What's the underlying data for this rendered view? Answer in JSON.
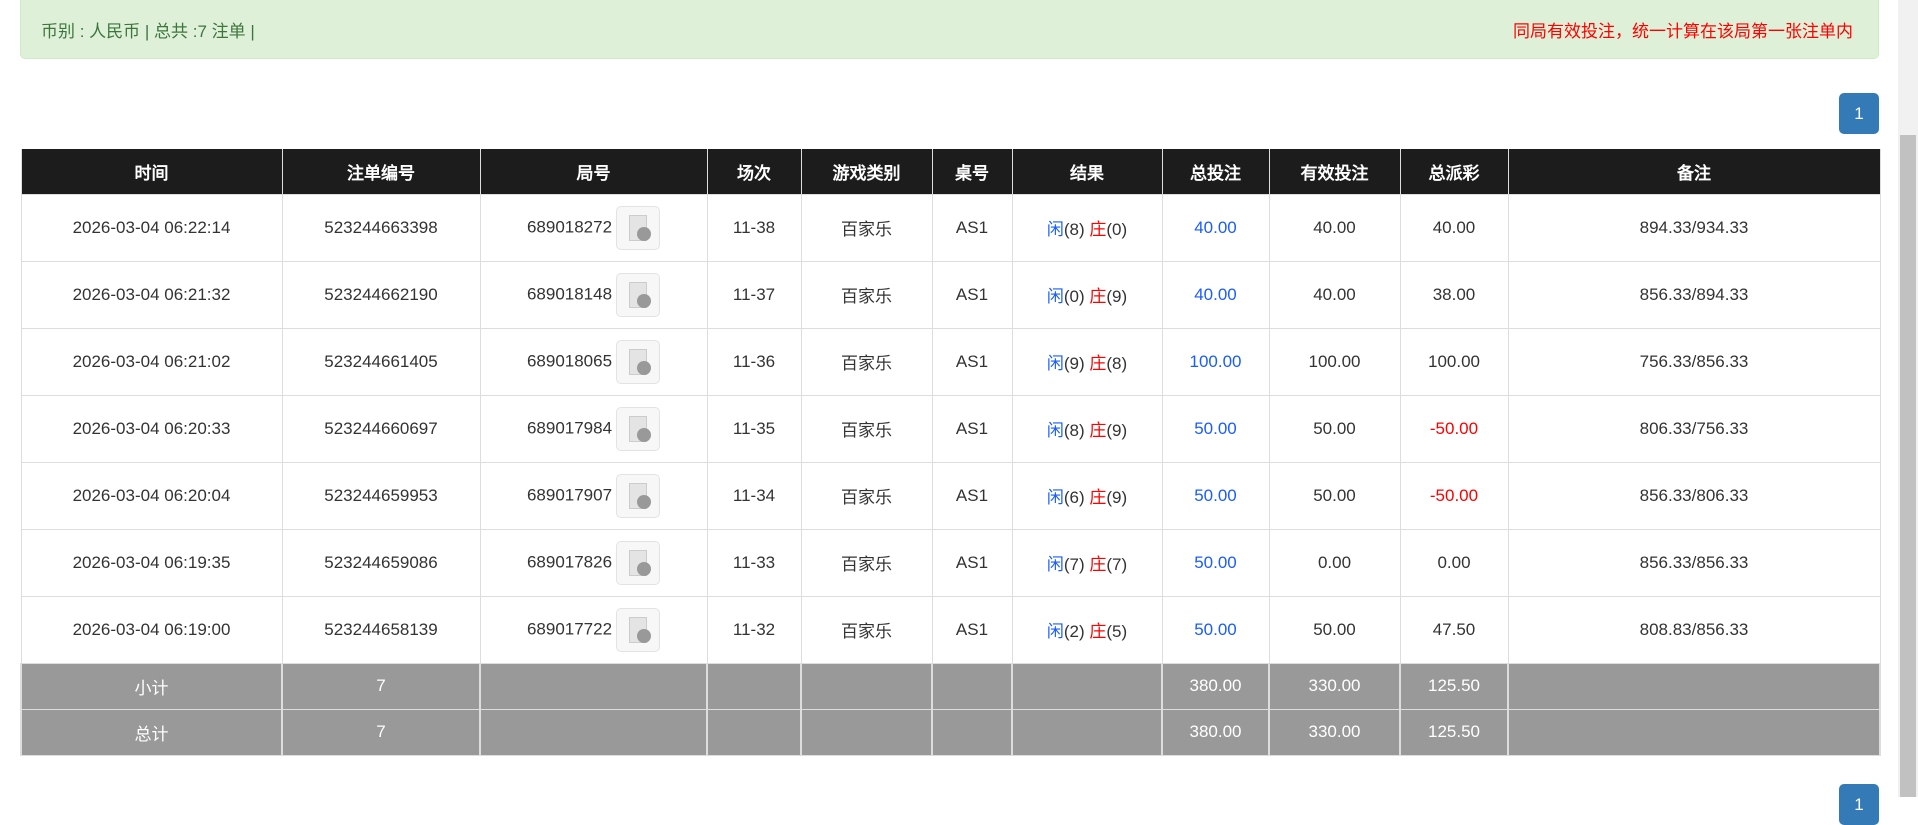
{
  "banner": {
    "left": "币别 : 人民币 | 总共 :7 注单 |",
    "right": "同局有效投注，统一计算在该局第一张注单内"
  },
  "pagination": {
    "current": "1"
  },
  "colors": {
    "accent": "#337ab7",
    "header_bg": "#1c1c1c",
    "player": "#1a5cff",
    "banker": "#ff0000",
    "banner_bg": "#dff0d8"
  },
  "table": {
    "headers": [
      "时间",
      "注单编号",
      "局号",
      "场次",
      "游戏类别",
      "桌号",
      "结果",
      "总投注",
      "有效投注",
      "总派彩",
      "备注"
    ],
    "rows": [
      {
        "time": "2026-03-04 06:22:14",
        "bet_id": "523244663398",
        "round": "689018272",
        "shoe": "11-38",
        "game": "百家乐",
        "table": "AS1",
        "player": "闲",
        "player_pts": "(8)",
        "banker": "庄",
        "banker_pts": "(0)",
        "total": "40.00",
        "valid": "40.00",
        "payout": "40.00",
        "payout_neg": false,
        "note": "894.33/934.33"
      },
      {
        "time": "2026-03-04 06:21:32",
        "bet_id": "523244662190",
        "round": "689018148",
        "shoe": "11-37",
        "game": "百家乐",
        "table": "AS1",
        "player": "闲",
        "player_pts": "(0)",
        "banker": "庄",
        "banker_pts": "(9)",
        "total": "40.00",
        "valid": "40.00",
        "payout": "38.00",
        "payout_neg": false,
        "note": "856.33/894.33"
      },
      {
        "time": "2026-03-04 06:21:02",
        "bet_id": "523244661405",
        "round": "689018065",
        "shoe": "11-36",
        "game": "百家乐",
        "table": "AS1",
        "player": "闲",
        "player_pts": "(9)",
        "banker": "庄",
        "banker_pts": "(8)",
        "total": "100.00",
        "valid": "100.00",
        "payout": "100.00",
        "payout_neg": false,
        "note": "756.33/856.33"
      },
      {
        "time": "2026-03-04 06:20:33",
        "bet_id": "523244660697",
        "round": "689017984",
        "shoe": "11-35",
        "game": "百家乐",
        "table": "AS1",
        "player": "闲",
        "player_pts": "(8)",
        "banker": "庄",
        "banker_pts": "(9)",
        "total": "50.00",
        "valid": "50.00",
        "payout": "-50.00",
        "payout_neg": true,
        "note": "806.33/756.33"
      },
      {
        "time": "2026-03-04 06:20:04",
        "bet_id": "523244659953",
        "round": "689017907",
        "shoe": "11-34",
        "game": "百家乐",
        "table": "AS1",
        "player": "闲",
        "player_pts": "(6)",
        "banker": "庄",
        "banker_pts": "(9)",
        "total": "50.00",
        "valid": "50.00",
        "payout": "-50.00",
        "payout_neg": true,
        "note": "856.33/806.33"
      },
      {
        "time": "2026-03-04 06:19:35",
        "bet_id": "523244659086",
        "round": "689017826",
        "shoe": "11-33",
        "game": "百家乐",
        "table": "AS1",
        "player": "闲",
        "player_pts": "(7)",
        "banker": "庄",
        "banker_pts": "(7)",
        "total": "50.00",
        "valid": "0.00",
        "payout": "0.00",
        "payout_neg": false,
        "note": "856.33/856.33"
      },
      {
        "time": "2026-03-04 06:19:00",
        "bet_id": "523244658139",
        "round": "689017722",
        "shoe": "11-32",
        "game": "百家乐",
        "table": "AS1",
        "player": "闲",
        "player_pts": "(2)",
        "banker": "庄",
        "banker_pts": "(5)",
        "total": "50.00",
        "valid": "50.00",
        "payout": "47.50",
        "payout_neg": false,
        "note": "808.83/856.33"
      }
    ],
    "subtotal": {
      "label": "小计",
      "count": "7",
      "total": "380.00",
      "valid": "330.00",
      "payout": "125.50"
    },
    "grandtotal": {
      "label": "总计",
      "count": "7",
      "total": "380.00",
      "valid": "330.00",
      "payout": "125.50"
    }
  }
}
